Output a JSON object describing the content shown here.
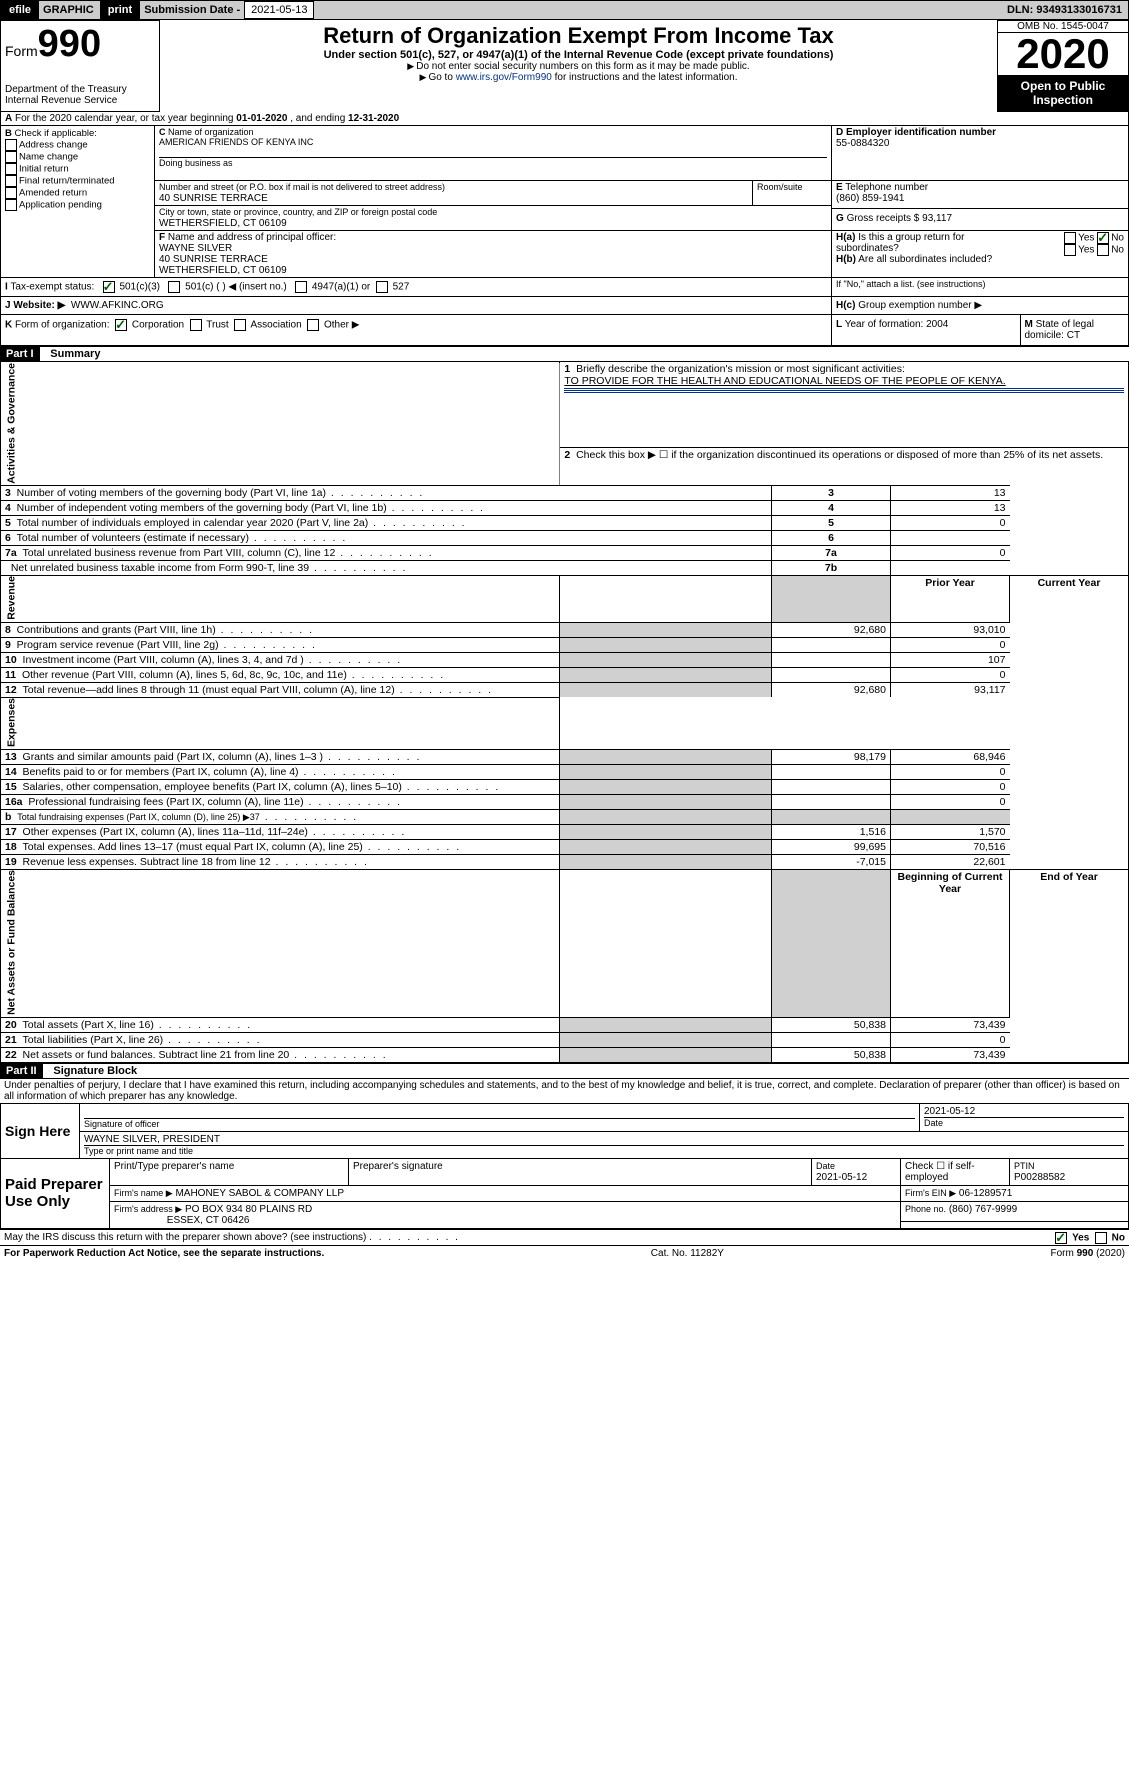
{
  "topbar": {
    "efile": "efile",
    "graphic": "GRAPHIC",
    "print": "print",
    "sub_label": "Submission Date - ",
    "sub_date": "2021-05-13",
    "dln": "DLN: 93493133016731"
  },
  "header": {
    "form_label": "Form",
    "form_num": "990",
    "title": "Return of Organization Exempt From Income Tax",
    "subtitle": "Under section 501(c), 527, or 4947(a)(1) of the Internal Revenue Code (except private foundations)",
    "instr1": "Do not enter social security numbers on this form as it may be made public.",
    "instr2_pre": "Go to ",
    "instr2_link": "www.irs.gov/Form990",
    "instr2_post": " for instructions and the latest information.",
    "dept": "Department of the Treasury\nInternal Revenue Service",
    "omb": "OMB No. 1545-0047",
    "year": "2020",
    "open": "Open to Public Inspection"
  },
  "A": {
    "text_pre": "For the 2020 calendar year, or tax year beginning ",
    "begin": "01-01-2020",
    "mid": " , and ending ",
    "end": "12-31-2020"
  },
  "B": {
    "label": "Check if applicable:",
    "items": [
      "Address change",
      "Name change",
      "Initial return",
      "Final return/terminated",
      "Amended return",
      "Application pending"
    ]
  },
  "C": {
    "name_label": "Name of organization",
    "name": "AMERICAN FRIENDS OF KENYA INC",
    "dba_label": "Doing business as",
    "street_label": "Number and street (or P.O. box if mail is not delivered to street address)",
    "room_label": "Room/suite",
    "street": "40 SUNRISE TERRACE",
    "city_label": "City or town, state or province, country, and ZIP or foreign postal code",
    "city": "WETHERSFIELD, CT  06109"
  },
  "D": {
    "label": "Employer identification number",
    "val": "55-0884320"
  },
  "E": {
    "label": "Telephone number",
    "val": "(860) 859-1941"
  },
  "G": {
    "label": "Gross receipts $",
    "val": "93,117"
  },
  "F": {
    "label": "Name and address of principal officer:",
    "name": "WAYNE SILVER",
    "street": "40 SUNRISE TERRACE",
    "city": "WETHERSFIELD, CT  06109"
  },
  "H": {
    "a": "Is this a group return for subordinates?",
    "b": "Are all subordinates included?",
    "b_note": "If \"No,\" attach a list. (see instructions)",
    "c": "Group exemption number ▶",
    "yes": "Yes",
    "no": "No"
  },
  "I": {
    "label": "Tax-exempt status:",
    "opts": [
      "501(c)(3)",
      "501(c) (   ) ◀ (insert no.)",
      "4947(a)(1) or",
      "527"
    ]
  },
  "J": {
    "label": "Website: ▶",
    "val": "WWW.AFKINC.ORG"
  },
  "K": {
    "label": "Form of organization:",
    "opts": [
      "Corporation",
      "Trust",
      "Association",
      "Other ▶"
    ]
  },
  "L": {
    "label": "Year of formation:",
    "val": "2004"
  },
  "M": {
    "label": "State of legal domicile:",
    "val": "CT"
  },
  "partI": {
    "label": "Part I",
    "title": "Summary"
  },
  "summary": {
    "q1_label": "Briefly describe the organization's mission or most significant activities:",
    "q1_text": "TO PROVIDE FOR THE HEALTH AND EDUCATIONAL NEEDS OF THE PEOPLE OF KENYA.",
    "q2": "Check this box ▶ ☐  if the organization discontinued its operations or disposed of more than 25% of its net assets.",
    "prior": "Prior Year",
    "current": "Current Year",
    "begin": "Beginning of Current Year",
    "end": "End of Year"
  },
  "sections": {
    "act": "Activities & Governance",
    "rev": "Revenue",
    "exp": "Expenses",
    "net": "Net Assets or Fund Balances"
  },
  "rows_single": [
    {
      "n": "3",
      "t": "Number of voting members of the governing body (Part VI, line 1a)",
      "box": "3",
      "v": "13"
    },
    {
      "n": "4",
      "t": "Number of independent voting members of the governing body (Part VI, line 1b)",
      "box": "4",
      "v": "13"
    },
    {
      "n": "5",
      "t": "Total number of individuals employed in calendar year 2020 (Part V, line 2a)",
      "box": "5",
      "v": "0"
    },
    {
      "n": "6",
      "t": "Total number of volunteers (estimate if necessary)",
      "box": "6",
      "v": ""
    },
    {
      "n": "7a",
      "t": "Total unrelated business revenue from Part VIII, column (C), line 12",
      "box": "7a",
      "v": "0"
    },
    {
      "n": "",
      "t": "Net unrelated business taxable income from Form 990-T, line 39",
      "box": "7b",
      "v": ""
    }
  ],
  "rows_rev": [
    {
      "n": "8",
      "t": "Contributions and grants (Part VIII, line 1h)",
      "p": "92,680",
      "c": "93,010"
    },
    {
      "n": "9",
      "t": "Program service revenue (Part VIII, line 2g)",
      "p": "",
      "c": "0"
    },
    {
      "n": "10",
      "t": "Investment income (Part VIII, column (A), lines 3, 4, and 7d )",
      "p": "",
      "c": "107"
    },
    {
      "n": "11",
      "t": "Other revenue (Part VIII, column (A), lines 5, 6d, 8c, 9c, 10c, and 11e)",
      "p": "",
      "c": "0"
    },
    {
      "n": "12",
      "t": "Total revenue—add lines 8 through 11 (must equal Part VIII, column (A), line 12)",
      "p": "92,680",
      "c": "93,117"
    }
  ],
  "rows_exp": [
    {
      "n": "13",
      "t": "Grants and similar amounts paid (Part IX, column (A), lines 1–3 )",
      "p": "98,179",
      "c": "68,946"
    },
    {
      "n": "14",
      "t": "Benefits paid to or for members (Part IX, column (A), line 4)",
      "p": "",
      "c": "0"
    },
    {
      "n": "15",
      "t": "Salaries, other compensation, employee benefits (Part IX, column (A), lines 5–10)",
      "p": "",
      "c": "0"
    },
    {
      "n": "16a",
      "t": "Professional fundraising fees (Part IX, column (A), line 11e)",
      "p": "",
      "c": "0"
    },
    {
      "n": "b",
      "t": "Total fundraising expenses (Part IX, column (D), line 25) ▶37",
      "p": "gray",
      "c": "gray",
      "indent": true,
      "small": true
    },
    {
      "n": "17",
      "t": "Other expenses (Part IX, column (A), lines 11a–11d, 11f–24e)",
      "p": "1,516",
      "c": "1,570"
    },
    {
      "n": "18",
      "t": "Total expenses. Add lines 13–17 (must equal Part IX, column (A), line 25)",
      "p": "99,695",
      "c": "70,516"
    },
    {
      "n": "19",
      "t": "Revenue less expenses. Subtract line 18 from line 12",
      "p": "-7,015",
      "c": "22,601"
    }
  ],
  "rows_net": [
    {
      "n": "20",
      "t": "Total assets (Part X, line 16)",
      "p": "50,838",
      "c": "73,439"
    },
    {
      "n": "21",
      "t": "Total liabilities (Part X, line 26)",
      "p": "",
      "c": "0"
    },
    {
      "n": "22",
      "t": "Net assets or fund balances. Subtract line 21 from line 20",
      "p": "50,838",
      "c": "73,439"
    }
  ],
  "partII": {
    "label": "Part II",
    "title": "Signature Block"
  },
  "perjury": "Under penalties of perjury, I declare that I have examined this return, including accompanying schedules and statements, and to the best of my knowledge and belief, it is true, correct, and complete. Declaration of preparer (other than officer) is based on all information of which preparer has any knowledge.",
  "sign": {
    "here": "Sign Here",
    "sig_label": "Signature of officer",
    "date": "2021-05-12",
    "date_label": "Date",
    "name": "WAYNE SILVER, PRESIDENT",
    "name_label": "Type or print name and title"
  },
  "paid": {
    "label": "Paid Preparer Use Only",
    "col1": "Print/Type preparer's name",
    "col2": "Preparer's signature",
    "col3": "Date",
    "date": "2021-05-12",
    "check": "Check ☐ if self-employed",
    "ptin_label": "PTIN",
    "ptin": "P00288582",
    "firm_name_label": "Firm's name   ▶",
    "firm_name": "MAHONEY SABOL & COMPANY LLP",
    "firm_ein_label": "Firm's EIN ▶",
    "firm_ein": "06-1289571",
    "firm_addr_label": "Firm's address ▶",
    "firm_addr1": "PO BOX 934 80 PLAINS RD",
    "firm_addr2": "ESSEX, CT  06426",
    "phone_label": "Phone no.",
    "phone": "(860) 767-9999"
  },
  "discuss": "May the IRS discuss this return with the preparer shown above? (see instructions)",
  "footer": {
    "pra": "For Paperwork Reduction Act Notice, see the separate instructions.",
    "cat": "Cat. No. 11282Y",
    "form": "Form 990 (2020)"
  }
}
